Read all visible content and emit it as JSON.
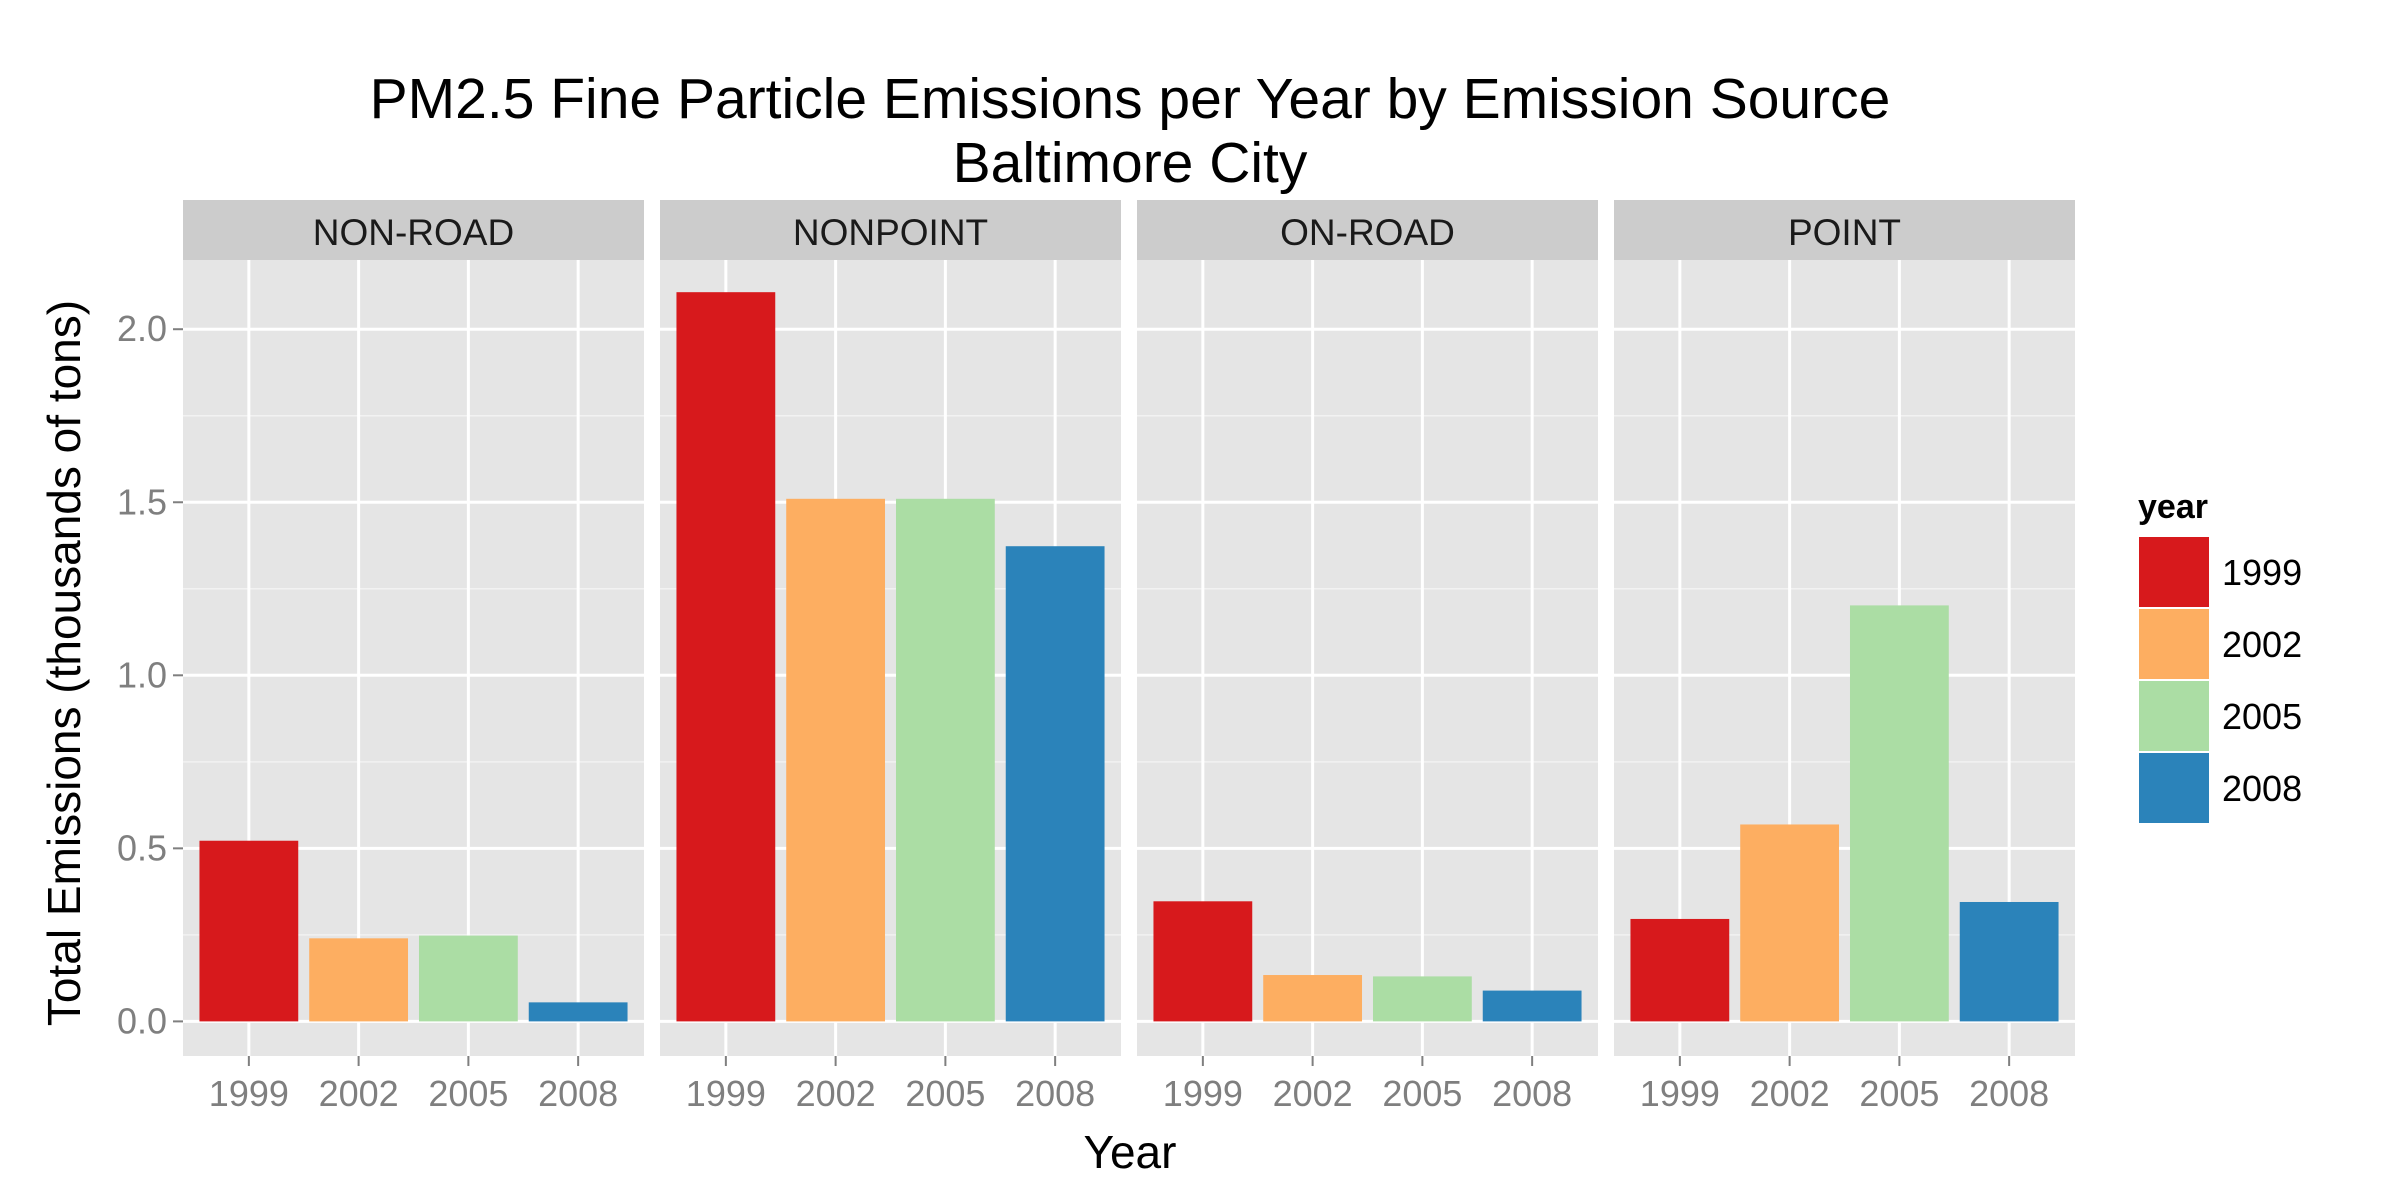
{
  "chart_data": {
    "type": "bar",
    "title": "PM2.5 Fine Particle Emissions per Year by Emission Source",
    "subtitle": "Baltimore City",
    "xlabel": "Year",
    "ylabel": "Total Emissions (thousands of tons)",
    "categories": [
      "1999",
      "2002",
      "2005",
      "2008"
    ],
    "ylim": [
      -0.1,
      2.2
    ],
    "yticks": [
      "0.0",
      "0.5",
      "1.0",
      "1.5",
      "2.0"
    ],
    "grid": true,
    "legend": {
      "title": "year",
      "placement": "right",
      "entries": [
        "1999",
        "2002",
        "2005",
        "2008"
      ]
    },
    "colors": {
      "1999": "#d7191c",
      "2002": "#fdae61",
      "2005": "#abdda4",
      "2008": "#2b83ba",
      "panel_bg": "#e5e5e5",
      "strip_bg": "#cccccc",
      "grid": "#ffffff"
    },
    "facets": [
      {
        "label": "NON-ROAD",
        "values": [
          0.522,
          0.24,
          0.248,
          0.055
        ]
      },
      {
        "label": "NONPOINT",
        "values": [
          2.107,
          1.51,
          1.51,
          1.373
        ]
      },
      {
        "label": "ON-ROAD",
        "values": [
          0.347,
          0.134,
          0.13,
          0.089
        ]
      },
      {
        "label": "POINT",
        "values": [
          0.296,
          0.569,
          1.202,
          0.345
        ]
      }
    ]
  }
}
